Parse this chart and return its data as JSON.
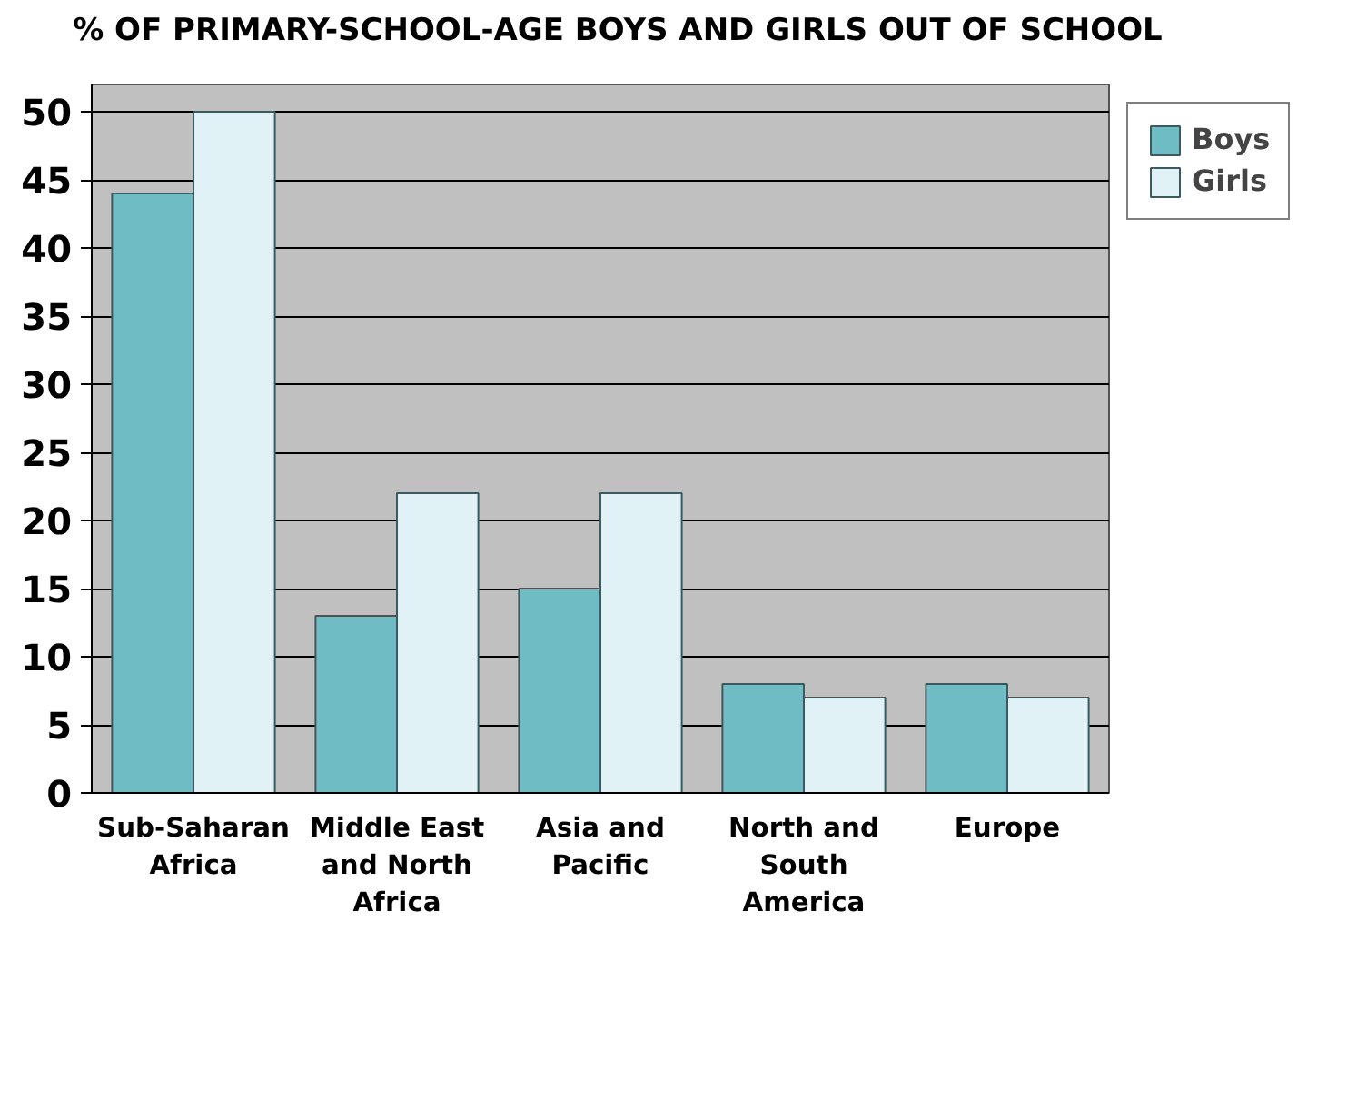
{
  "chart_data": {
    "type": "bar",
    "title": "% OF PRIMARY-SCHOOL-AGE BOYS AND GIRLS OUT OF SCHOOL",
    "categories": [
      "Sub-Saharan Africa",
      "Middle East and North Africa",
      "Asia and Pacific",
      "North and South America",
      "Europe"
    ],
    "series": [
      {
        "name": "Boys",
        "color": "#6fbcc4",
        "values": [
          44,
          13,
          15,
          8,
          8
        ]
      },
      {
        "name": "Girls",
        "color": "#e0f2f5",
        "values": [
          50,
          22,
          22,
          7,
          7
        ]
      }
    ],
    "ylim": [
      0,
      52
    ],
    "yticks": [
      0,
      5,
      10,
      15,
      20,
      25,
      30,
      35,
      40,
      45,
      50
    ],
    "grid": "y",
    "legend": "top right"
  }
}
